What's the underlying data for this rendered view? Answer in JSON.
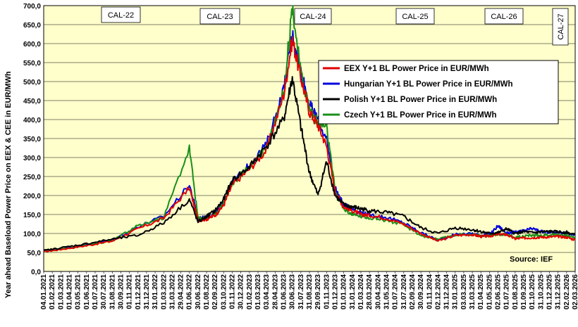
{
  "chart_data": {
    "type": "line",
    "ylabel": "Year ahead Baseload Power Price on EEX & CEE in EUR/MWh",
    "ylim": [
      0,
      700
    ],
    "y_ticks": [
      "0,0",
      "50,0",
      "100,0",
      "150,0",
      "200,0",
      "250,0",
      "300,0",
      "350,0",
      "400,0",
      "450,0",
      "500,0",
      "550,0",
      "600,0",
      "650,0",
      "700,0"
    ],
    "x_ticks": [
      "04.01.2021",
      "01.02.2021",
      "01.03.2021",
      "01.04.2021",
      "03.05.2021",
      "01.06.2021",
      "01.07.2021",
      "30.07.2021",
      "31.08.2021",
      "30.09.2021",
      "01.11.2021",
      "01.12.2021",
      "31.12.2021",
      "31.01.2022",
      "01.03.2022",
      "31.03.2022",
      "29.04.2022",
      "01.06.2022",
      "30.06.2022",
      "01.08.2022",
      "02.09.2022",
      "03.10.2022",
      "01.11.2022",
      "30.12.2022",
      "01.02.2023",
      "01.03.2023",
      "03.04.2023",
      "28.04.2023",
      "01.06.2023",
      "30.06.2023",
      "31.07.2023",
      "31.08.2023",
      "29.09.2023",
      "01.11.2023",
      "01.12.2023",
      "01.01.2024",
      "31.01.2024",
      "01.03.2024",
      "28.03.2024",
      "30.04.2024",
      "31.05.2024",
      "01.07.2024",
      "31.07.2024",
      "02.09.2024",
      "30.09.2024",
      "01.11.2024",
      "02.12.2024",
      "31.12.2024",
      "31.01.2025",
      "03.03.2025",
      "31.03.2025",
      "01.04.2025",
      "01.05.2025",
      "02.06.2025",
      "01.07.2025",
      "01.08.2025",
      "01.09.2025",
      "01.10.2025",
      "31.10.2025",
      "01.12.2025",
      "31.12.2025",
      "02.02.2026",
      "02.03.2026"
    ],
    "calendar_labels": [
      "CAL-22",
      "CAL-23",
      "CAL-24",
      "CAL-25",
      "CAL-26",
      "CAL-27"
    ],
    "legend_position": "top-right",
    "grid": true,
    "series": [
      {
        "name": "EEX Y+1 BL Power Price in EUR/MWh",
        "color": "#e00000",
        "x": [
          0,
          2,
          5,
          8,
          11,
          14,
          17,
          18,
          19,
          20,
          21,
          22,
          24,
          26,
          28,
          29,
          30,
          31,
          32,
          33,
          34,
          35,
          36,
          37,
          38,
          40,
          42,
          44,
          46,
          48,
          50,
          51,
          52,
          53,
          54,
          55,
          56,
          57,
          58,
          59,
          60,
          61,
          62
        ],
        "y": [
          52,
          58,
          68,
          80,
          112,
          140,
          220,
          135,
          138,
          148,
          175,
          228,
          270,
          320,
          465,
          610,
          510,
          420,
          385,
          330,
          210,
          170,
          160,
          150,
          148,
          140,
          125,
          100,
          80,
          95,
          97,
          92,
          93,
          98,
          97,
          86,
          88,
          89,
          90,
          91,
          92,
          90,
          83
        ]
      },
      {
        "name": "Hungarian Y+1 BL Power Price in EUR/MWh",
        "color": "#0000dd",
        "x": [
          0,
          2,
          5,
          8,
          11,
          14,
          17,
          18,
          19,
          20,
          21,
          22,
          24,
          26,
          28,
          29,
          30,
          31,
          32,
          33,
          34,
          35,
          36,
          37,
          38,
          40,
          42,
          44,
          46,
          48,
          50,
          51,
          52,
          53,
          54,
          55,
          56,
          57,
          58,
          59,
          60,
          61,
          62
        ],
        "y": [
          54,
          60,
          70,
          82,
          118,
          145,
          228,
          140,
          142,
          152,
          182,
          235,
          280,
          335,
          480,
          625,
          530,
          440,
          400,
          345,
          220,
          175,
          165,
          155,
          150,
          142,
          128,
          102,
          82,
          97,
          100,
          95,
          97,
          120,
          101,
          103,
          107,
          113,
          105,
          103,
          104,
          101,
          95
        ]
      },
      {
        "name": "Polish Y+1 BL Power Price in EUR/MWh",
        "color": "#000000",
        "x": [
          0,
          2,
          5,
          8,
          11,
          14,
          17,
          18,
          19,
          20,
          21,
          22,
          24,
          26,
          28,
          29,
          30,
          31,
          32,
          33,
          34,
          35,
          36,
          37,
          38,
          40,
          42,
          44,
          46,
          48,
          50,
          51,
          52,
          53,
          54,
          55,
          56,
          57,
          58,
          59,
          60,
          61,
          62
        ],
        "y": [
          55,
          62,
          73,
          85,
          95,
          128,
          190,
          130,
          145,
          160,
          190,
          240,
          275,
          330,
          400,
          510,
          380,
          260,
          200,
          290,
          200,
          175,
          170,
          165,
          160,
          155,
          145,
          115,
          100,
          115,
          110,
          105,
          100,
          102,
          112,
          100,
          105,
          102,
          104,
          105,
          104,
          103,
          96
        ]
      },
      {
        "name": "Czech Y+1 BL Power Price in EUR/MWh",
        "color": "#1a8f1a",
        "x": [
          0,
          2,
          5,
          8,
          11,
          14,
          17,
          18,
          19,
          20,
          21,
          22,
          24,
          26,
          28,
          29,
          30,
          31,
          32,
          33,
          34,
          35,
          36,
          37,
          38,
          40,
          42,
          44,
          46,
          48,
          50,
          51,
          52,
          53,
          54,
          55,
          56,
          57,
          58,
          59,
          60,
          61,
          62
        ],
        "y": [
          53,
          59,
          69,
          81,
          120,
          142,
          325,
          140,
          140,
          150,
          180,
          232,
          275,
          330,
          470,
          700,
          520,
          430,
          390,
          380,
          212,
          165,
          150,
          145,
          142,
          135,
          122,
          95,
          84,
          96,
          98,
          93,
          95,
          98,
          98,
          90,
          93,
          95,
          95,
          96,
          97,
          95,
          88
        ]
      }
    ],
    "annotation": "Source: IEF"
  }
}
